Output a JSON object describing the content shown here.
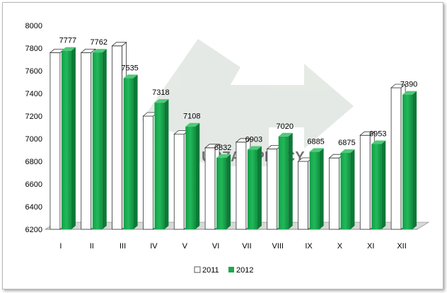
{
  "colors": {
    "series_2011_fill": "#ffffff",
    "series_2011_stroke": "#333333",
    "series_2012_front": "#1aa84f",
    "series_2012_side": "#0c7a36",
    "series_2012_top": "#4fc97a",
    "watermark": "#cfd8d0"
  },
  "chart_data": {
    "type": "bar",
    "categories": [
      "I",
      "II",
      "III",
      "IV",
      "V",
      "VI",
      "VII",
      "VIII",
      "IX",
      "X",
      "XI",
      "XII"
    ],
    "series": [
      {
        "name": "2011",
        "values": [
          7760,
          7760,
          7820,
          7200,
          7040,
          6920,
          6970,
          6910,
          6800,
          6830,
          7030,
          7450
        ]
      },
      {
        "name": "2012",
        "values": [
          7777,
          7762,
          7535,
          7318,
          7108,
          6832,
          6903,
          7020,
          6885,
          6875,
          6953,
          7390
        ]
      }
    ],
    "data_labels": [
      "7777",
      "7762",
      "7535",
      "7318",
      "7108",
      "6832",
      "6903",
      "7020",
      "6885",
      "6875",
      "6953",
      "7390"
    ],
    "y_ticks": [
      "8000",
      "7800",
      "7600",
      "7400",
      "7200",
      "7000",
      "6800",
      "6600",
      "6400",
      "6200"
    ],
    "ylim": [
      6200,
      8000
    ],
    "legend": {
      "position": "bottom",
      "items": [
        "2011",
        "2012"
      ]
    },
    "grid": false,
    "style": "3d-column",
    "watermark_text": "URZĄD PRACY"
  }
}
